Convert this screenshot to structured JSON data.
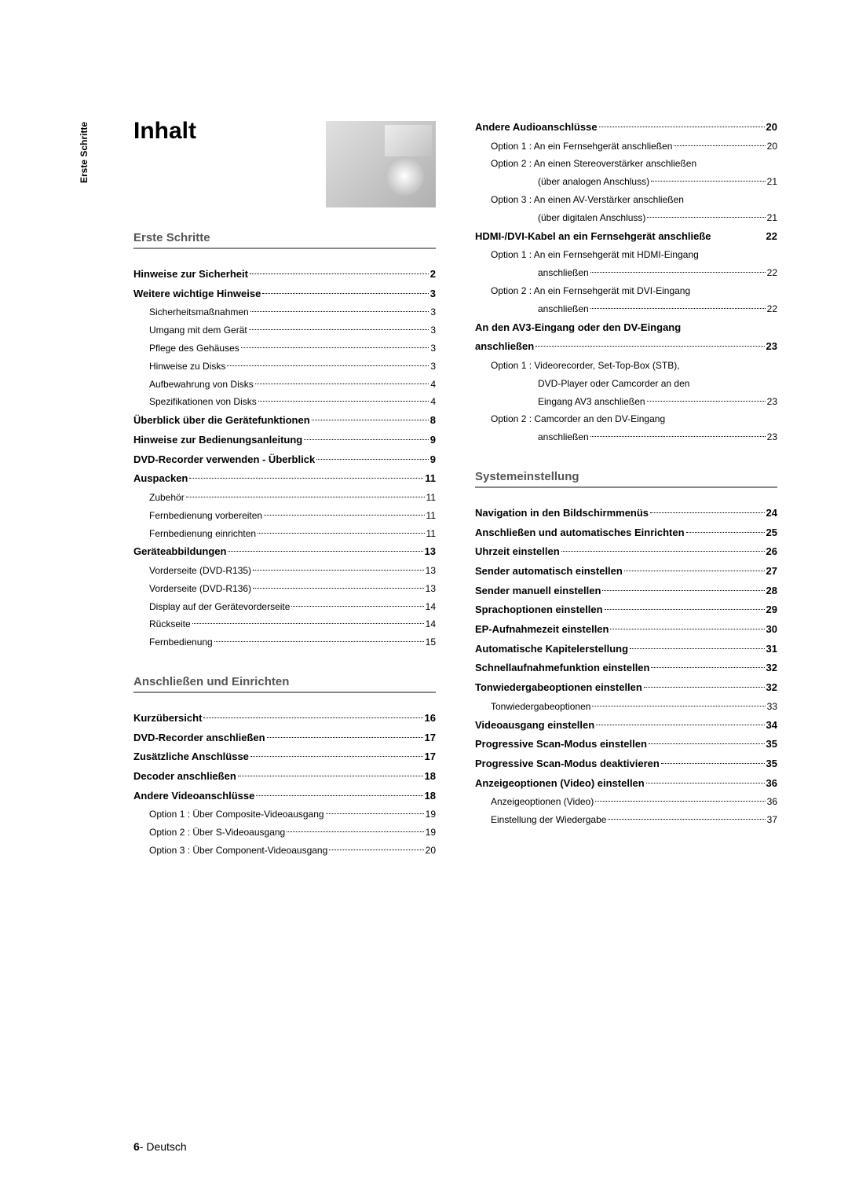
{
  "sideTab": "Erste Schritte",
  "mainTitle": "Inhalt",
  "sections": {
    "s1": {
      "header": "Erste Schritte",
      "entries": [
        {
          "text": "Hinweise zur Sicherheit",
          "page": "2",
          "bold": true,
          "indent": 0
        },
        {
          "text": "Weitere wichtige Hinweise",
          "page": "3",
          "bold": true,
          "indent": 0
        },
        {
          "text": "Sicherheitsmaßnahmen",
          "page": "3",
          "bold": false,
          "indent": 1
        },
        {
          "text": "Umgang mit dem Gerät",
          "page": "3",
          "bold": false,
          "indent": 1
        },
        {
          "text": "Pflege des Gehäuses",
          "page": "3",
          "bold": false,
          "indent": 1
        },
        {
          "text": "Hinweise zu Disks",
          "page": "3",
          "bold": false,
          "indent": 1
        },
        {
          "text": "Aufbewahrung von Disks",
          "page": "4",
          "bold": false,
          "indent": 1
        },
        {
          "text": "Spezifikationen von Disks",
          "page": "4",
          "bold": false,
          "indent": 1
        },
        {
          "text": "Überblick über die Gerätefunktionen",
          "page": "8",
          "bold": true,
          "indent": 0
        },
        {
          "text": "Hinweise zur Bedienungsanleitung",
          "page": "9",
          "bold": true,
          "indent": 0
        },
        {
          "text": "DVD-Recorder verwenden - Überblick",
          "page": "9",
          "bold": true,
          "indent": 0
        },
        {
          "text": "Auspacken",
          "page": "11",
          "bold": true,
          "indent": 0
        },
        {
          "text": "Zubehör",
          "page": "11",
          "bold": false,
          "indent": 1
        },
        {
          "text": "Fernbedienung vorbereiten",
          "page": "11",
          "bold": false,
          "indent": 1
        },
        {
          "text": "Fernbedienung einrichten",
          "page": "11",
          "bold": false,
          "indent": 1
        },
        {
          "text": "Geräteabbildungen",
          "page": "13",
          "bold": true,
          "indent": 0
        },
        {
          "text": "Vorderseite (DVD-R135)",
          "page": "13",
          "bold": false,
          "indent": 1
        },
        {
          "text": "Vorderseite (DVD-R136)",
          "page": "13",
          "bold": false,
          "indent": 1
        },
        {
          "text": "Display auf der Gerätevorderseite",
          "page": "14",
          "bold": false,
          "indent": 1
        },
        {
          "text": "Rückseite",
          "page": "14",
          "bold": false,
          "indent": 1
        },
        {
          "text": "Fernbedienung",
          "page": "15",
          "bold": false,
          "indent": 1
        }
      ]
    },
    "s2": {
      "header": "Anschließen und Einrichten",
      "entries": [
        {
          "text": "Kurzübersicht",
          "page": "16",
          "bold": true,
          "indent": 0
        },
        {
          "text": "DVD-Recorder anschließen",
          "page": "17",
          "bold": true,
          "indent": 0
        },
        {
          "text": "Zusätzliche Anschlüsse",
          "page": "17",
          "bold": true,
          "indent": 0
        },
        {
          "text": "Decoder anschließen",
          "page": "18",
          "bold": true,
          "indent": 0
        },
        {
          "text": "Andere Videoanschlüsse",
          "page": "18",
          "bold": true,
          "indent": 0
        },
        {
          "text": "Option 1 : Über Composite-Videoausgang",
          "page": "19",
          "bold": false,
          "indent": 1
        },
        {
          "text": "Option 2 : Über S-Videoausgang",
          "page": "19",
          "bold": false,
          "indent": 1
        },
        {
          "text": "Option 3 : Über Component-Videoausgang",
          "page": "20",
          "bold": false,
          "indent": 1
        }
      ]
    },
    "s3": {
      "entries": [
        {
          "text": "Andere Audioanschlüsse",
          "page": "20",
          "bold": true,
          "indent": 0
        },
        {
          "text": "Option 1 : An ein Fernsehgerät anschließen",
          "page": "20",
          "bold": false,
          "indent": 1
        },
        {
          "text": "Option 2 : An einen Stereoverstärker anschließen",
          "page": "",
          "bold": false,
          "indent": 1,
          "nodots": true
        },
        {
          "text": "(über analogen Anschluss)",
          "page": "21",
          "bold": false,
          "indent": 2
        },
        {
          "text": "Option 3 : An einen AV-Verstärker anschließen",
          "page": "",
          "bold": false,
          "indent": 1,
          "nodots": true
        },
        {
          "text": "(über digitalen Anschluss)",
          "page": "21",
          "bold": false,
          "indent": 2
        },
        {
          "text": "HDMI-/DVI-Kabel an ein Fernsehgerät anschließe",
          "page": "22",
          "bold": true,
          "indent": 0,
          "nodots": true
        },
        {
          "text": "Option 1 : An ein Fernsehgerät mit HDMI-Eingang",
          "page": "",
          "bold": false,
          "indent": 1,
          "nodots": true
        },
        {
          "text": "anschließen",
          "page": "22",
          "bold": false,
          "indent": 2
        },
        {
          "text": "Option 2 : An ein Fernsehgerät mit DVI-Eingang",
          "page": "",
          "bold": false,
          "indent": 1,
          "nodots": true
        },
        {
          "text": "anschließen",
          "page": "22",
          "bold": false,
          "indent": 2
        },
        {
          "text": "An den AV3-Eingang oder den DV-Eingang",
          "page": "",
          "bold": true,
          "indent": 0,
          "nodots": true
        },
        {
          "text": "anschließen",
          "page": "23",
          "bold": true,
          "indent": 0
        },
        {
          "text": "Option 1 : Videorecorder, Set-Top-Box (STB),",
          "page": "",
          "bold": false,
          "indent": 1,
          "nodots": true
        },
        {
          "text": "DVD-Player oder Camcorder an den",
          "page": "",
          "bold": false,
          "indent": 2,
          "nodots": true
        },
        {
          "text": "Eingang AV3 anschließen",
          "page": "23",
          "bold": false,
          "indent": 2
        },
        {
          "text": "Option 2 : Camcorder an den DV-Eingang",
          "page": "",
          "bold": false,
          "indent": 1,
          "nodots": true
        },
        {
          "text": "anschließen",
          "page": "23",
          "bold": false,
          "indent": 2
        }
      ]
    },
    "s4": {
      "header": "Systemeinstellung",
      "entries": [
        {
          "text": "Navigation in den Bildschirmmenüs",
          "page": "24",
          "bold": true,
          "indent": 0
        },
        {
          "text": "Anschließen und automatisches Einrichten",
          "page": "25",
          "bold": true,
          "indent": 0
        },
        {
          "text": "Uhrzeit einstellen",
          "page": "26",
          "bold": true,
          "indent": 0
        },
        {
          "text": "Sender automatisch einstellen",
          "page": "27",
          "bold": true,
          "indent": 0
        },
        {
          "text": "Sender manuell einstellen",
          "page": "28",
          "bold": true,
          "indent": 0
        },
        {
          "text": "Sprachoptionen einstellen",
          "page": "29",
          "bold": true,
          "indent": 0
        },
        {
          "text": "EP-Aufnahmezeit einstellen",
          "page": "30",
          "bold": true,
          "indent": 0
        },
        {
          "text": "Automatische Kapitelerstellung",
          "page": "31",
          "bold": true,
          "indent": 0
        },
        {
          "text": "Schnellaufnahmefunktion einstellen",
          "page": "32",
          "bold": true,
          "indent": 0
        },
        {
          "text": "Tonwiedergabeoptionen einstellen",
          "page": "32",
          "bold": true,
          "indent": 0
        },
        {
          "text": "Tonwiedergabeoptionen",
          "page": "33",
          "bold": false,
          "indent": 1
        },
        {
          "text": "Videoausgang einstellen",
          "page": "34",
          "bold": true,
          "indent": 0
        },
        {
          "text": "Progressive Scan-Modus einstellen",
          "page": "35",
          "bold": true,
          "indent": 0
        },
        {
          "text": "Progressive Scan-Modus deaktivieren",
          "page": "35",
          "bold": true,
          "indent": 0
        },
        {
          "text": "Anzeigeoptionen (Video) einstellen",
          "page": "36",
          "bold": true,
          "indent": 0
        },
        {
          "text": "Anzeigeoptionen (Video)",
          "page": "36",
          "bold": false,
          "indent": 1
        },
        {
          "text": "Einstellung der Wiedergabe",
          "page": "37",
          "bold": false,
          "indent": 1
        }
      ]
    }
  },
  "footer": {
    "pageNum": "6",
    "separator": "- ",
    "lang": "Deutsch"
  }
}
